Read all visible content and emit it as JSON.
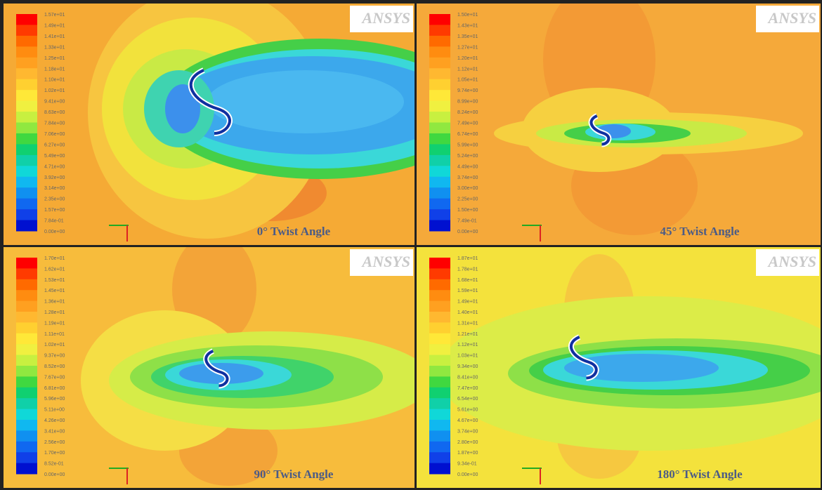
{
  "panels": [
    {
      "title": "0° Twist Angle",
      "logo": "ANSYS",
      "legend": [
        "1.57e+01",
        "1.49e+01",
        "1.41e+01",
        "1.33e+01",
        "1.25e+01",
        "1.18e+01",
        "1.10e+01",
        "1.02e+01",
        "9.41e+00",
        "8.63e+00",
        "7.84e+00",
        "7.06e+00",
        "6.27e+00",
        "5.49e+00",
        "4.71e+00",
        "3.92e+00",
        "3.14e+00",
        "2.35e+00",
        "1.57e+00",
        "7.84e-01",
        "0.00e+00"
      ]
    },
    {
      "title": "45° Twist Angle",
      "logo": "ANSYS",
      "legend": [
        "1.50e+01",
        "1.43e+01",
        "1.35e+01",
        "1.27e+01",
        "1.20e+01",
        "1.12e+01",
        "1.05e+01",
        "9.74e+00",
        "8.99e+00",
        "8.24e+00",
        "7.49e+00",
        "6.74e+00",
        "5.99e+00",
        "5.24e+00",
        "4.49e+00",
        "3.74e+00",
        "3.00e+00",
        "2.25e+00",
        "1.50e+00",
        "7.49e-01",
        "0.00e+00"
      ]
    },
    {
      "title": "90° Twist Angle",
      "logo": "ANSYS",
      "legend": [
        "1.70e+01",
        "1.62e+01",
        "1.53e+01",
        "1.45e+01",
        "1.36e+01",
        "1.28e+01",
        "1.19e+01",
        "1.11e+01",
        "1.02e+01",
        "9.37e+00",
        "8.52e+00",
        "7.67e+00",
        "6.81e+00",
        "5.96e+00",
        "5.11e+00",
        "4.26e+00",
        "3.41e+00",
        "2.56e+00",
        "1.70e+00",
        "8.52e-01",
        "0.00e+00"
      ]
    },
    {
      "title": "180° Twist Angle",
      "logo": "ANSYS",
      "legend": [
        "1.87e+01",
        "1.78e+01",
        "1.68e+01",
        "1.59e+01",
        "1.49e+01",
        "1.40e+01",
        "1.31e+01",
        "1.21e+01",
        "1.12e+01",
        "1.03e+01",
        "9.34e+00",
        "8.41e+00",
        "7.47e+00",
        "6.54e+00",
        "5.61e+00",
        "4.67e+00",
        "3.74e+00",
        "2.80e+00",
        "1.87e+00",
        "9.34e-01",
        "0.00e+00"
      ]
    }
  ]
}
